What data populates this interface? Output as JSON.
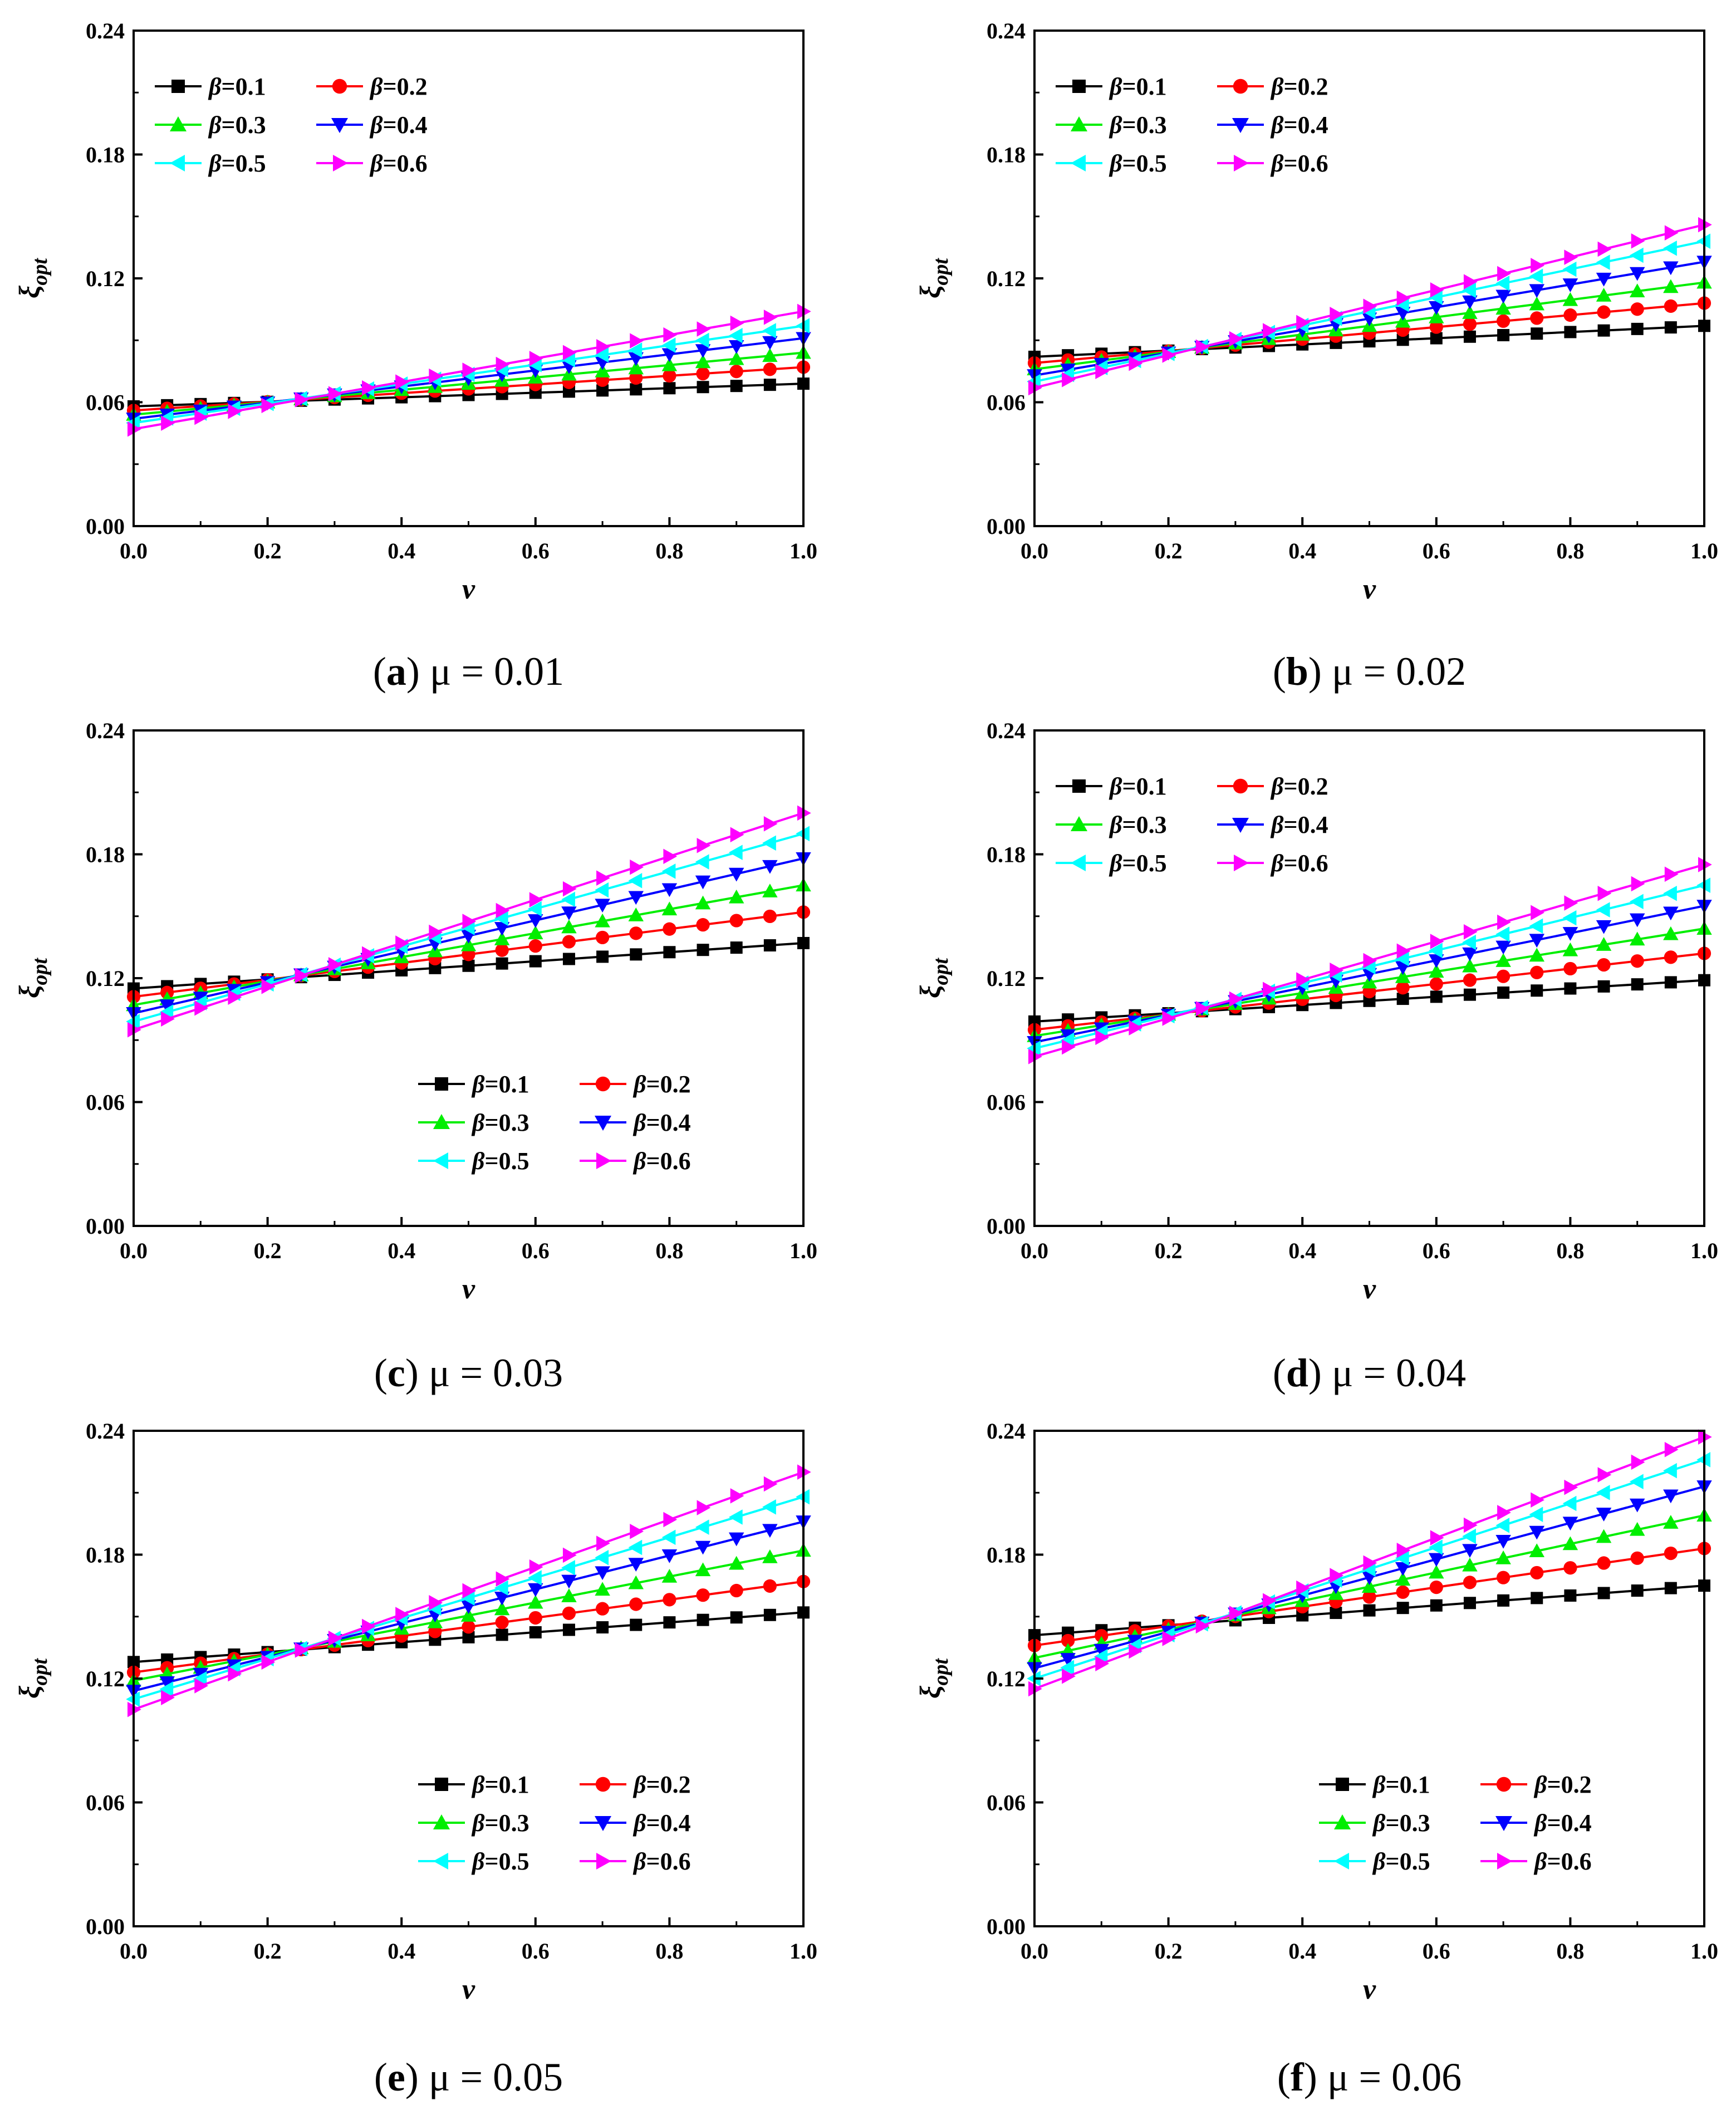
{
  "figure": {
    "panels": [
      {
        "caption_letter": "a",
        "caption_expr": "μ = 0.01",
        "ylabel": "ξ",
        "ylabel_sub": "opt",
        "xlabel": "v",
        "legend_position": "top-left",
        "chart_data": {
          "type": "line",
          "x": [
            0.0,
            0.05,
            0.1,
            0.15,
            0.2,
            0.25,
            0.3,
            0.35,
            0.4,
            0.45,
            0.5,
            0.55,
            0.6,
            0.65,
            0.7,
            0.75,
            0.8,
            0.85,
            0.9,
            0.95,
            1.0
          ],
          "xlim": [
            0.0,
            1.0
          ],
          "ylim": [
            0.0,
            0.24
          ],
          "xticks": [
            "0.0",
            "0.2",
            "0.4",
            "0.6",
            "0.8",
            "1.0"
          ],
          "yticks": [
            "0.00",
            "0.06",
            "0.12",
            "0.18",
            "0.24"
          ],
          "series": [
            {
              "name": "β=0.1",
              "color": "#000000",
              "marker": "square",
              "start": 0.058,
              "end": 0.069
            },
            {
              "name": "β=0.2",
              "color": "#ff0000",
              "marker": "circle",
              "start": 0.056,
              "end": 0.077
            },
            {
              "name": "β=0.3",
              "color": "#00ee00",
              "marker": "triangle-up",
              "start": 0.054,
              "end": 0.084
            },
            {
              "name": "β=0.4",
              "color": "#0000ff",
              "marker": "triangle-down",
              "start": 0.052,
              "end": 0.091
            },
            {
              "name": "β=0.5",
              "color": "#00ffff",
              "marker": "triangle-left",
              "start": 0.05,
              "end": 0.097
            },
            {
              "name": "β=0.6",
              "color": "#ff00ff",
              "marker": "triangle-right",
              "start": 0.047,
              "end": 0.104
            }
          ]
        }
      },
      {
        "caption_letter": "b",
        "caption_expr": "μ = 0.02",
        "ylabel": "ξ",
        "ylabel_sub": "opt",
        "xlabel": "v",
        "legend_position": "top-left",
        "chart_data": {
          "type": "line",
          "x": [
            0.0,
            0.05,
            0.1,
            0.15,
            0.2,
            0.25,
            0.3,
            0.35,
            0.4,
            0.45,
            0.5,
            0.55,
            0.6,
            0.65,
            0.7,
            0.75,
            0.8,
            0.85,
            0.9,
            0.95,
            1.0
          ],
          "xlim": [
            0.0,
            1.0
          ],
          "ylim": [
            0.0,
            0.24
          ],
          "xticks": [
            "0.0",
            "0.2",
            "0.4",
            "0.6",
            "0.8",
            "1.0"
          ],
          "yticks": [
            "0.00",
            "0.06",
            "0.12",
            "0.18",
            "0.24"
          ],
          "series": [
            {
              "name": "β=0.1",
              "color": "#000000",
              "marker": "square",
              "start": 0.082,
              "end": 0.097
            },
            {
              "name": "β=0.2",
              "color": "#ff0000",
              "marker": "circle",
              "start": 0.079,
              "end": 0.108
            },
            {
              "name": "β=0.3",
              "color": "#00ee00",
              "marker": "triangle-up",
              "start": 0.076,
              "end": 0.118
            },
            {
              "name": "β=0.4",
              "color": "#0000ff",
              "marker": "triangle-down",
              "start": 0.073,
              "end": 0.128
            },
            {
              "name": "β=0.5",
              "color": "#00ffff",
              "marker": "triangle-left",
              "start": 0.07,
              "end": 0.138
            },
            {
              "name": "β=0.6",
              "color": "#ff00ff",
              "marker": "triangle-right",
              "start": 0.067,
              "end": 0.146
            }
          ]
        }
      },
      {
        "caption_letter": "c",
        "caption_expr": "μ = 0.03",
        "ylabel": "ξ",
        "ylabel_sub": "opt",
        "xlabel": "v",
        "legend_position": "bottom-right",
        "chart_data": {
          "type": "line",
          "x": [
            0.0,
            0.05,
            0.1,
            0.15,
            0.2,
            0.25,
            0.3,
            0.35,
            0.4,
            0.45,
            0.5,
            0.55,
            0.6,
            0.65,
            0.7,
            0.75,
            0.8,
            0.85,
            0.9,
            0.95,
            1.0
          ],
          "xlim": [
            0.0,
            1.0
          ],
          "ylim": [
            0.0,
            0.24
          ],
          "xticks": [
            "0.0",
            "0.2",
            "0.4",
            "0.6",
            "0.8",
            "1.0"
          ],
          "yticks": [
            "0.00",
            "0.06",
            "0.12",
            "0.18",
            "0.24"
          ],
          "series": [
            {
              "name": "β=0.1",
              "color": "#000000",
              "marker": "square",
              "start": 0.115,
              "end": 0.137
            },
            {
              "name": "β=0.2",
              "color": "#ff0000",
              "marker": "circle",
              "start": 0.111,
              "end": 0.152
            },
            {
              "name": "β=0.3",
              "color": "#00ee00",
              "marker": "triangle-up",
              "start": 0.107,
              "end": 0.165
            },
            {
              "name": "β=0.4",
              "color": "#0000ff",
              "marker": "triangle-down",
              "start": 0.103,
              "end": 0.178
            },
            {
              "name": "β=0.5",
              "color": "#00ffff",
              "marker": "triangle-left",
              "start": 0.099,
              "end": 0.19
            },
            {
              "name": "β=0.6",
              "color": "#ff00ff",
              "marker": "triangle-right",
              "start": 0.095,
              "end": 0.2
            }
          ]
        }
      },
      {
        "caption_letter": "d",
        "caption_expr": "μ = 0.04",
        "ylabel": "ξ",
        "ylabel_sub": "opt",
        "xlabel": "v",
        "legend_position": "top-left",
        "chart_data": {
          "type": "line",
          "x": [
            0.0,
            0.05,
            0.1,
            0.15,
            0.2,
            0.25,
            0.3,
            0.35,
            0.4,
            0.45,
            0.5,
            0.55,
            0.6,
            0.65,
            0.7,
            0.75,
            0.8,
            0.85,
            0.9,
            0.95,
            1.0
          ],
          "xlim": [
            0.0,
            1.0
          ],
          "ylim": [
            0.0,
            0.24
          ],
          "xticks": [
            "0.0",
            "0.2",
            "0.4",
            "0.6",
            "0.8",
            "1.0"
          ],
          "yticks": [
            "0.00",
            "0.06",
            "0.12",
            "0.18",
            "0.24"
          ],
          "series": [
            {
              "name": "β=0.1",
              "color": "#000000",
              "marker": "square",
              "start": 0.099,
              "end": 0.119
            },
            {
              "name": "β=0.2",
              "color": "#ff0000",
              "marker": "circle",
              "start": 0.095,
              "end": 0.132
            },
            {
              "name": "β=0.3",
              "color": "#00ee00",
              "marker": "triangle-up",
              "start": 0.092,
              "end": 0.144
            },
            {
              "name": "β=0.4",
              "color": "#0000ff",
              "marker": "triangle-down",
              "start": 0.089,
              "end": 0.155
            },
            {
              "name": "β=0.5",
              "color": "#00ffff",
              "marker": "triangle-left",
              "start": 0.086,
              "end": 0.165
            },
            {
              "name": "β=0.6",
              "color": "#ff00ff",
              "marker": "triangle-right",
              "start": 0.082,
              "end": 0.175
            }
          ]
        }
      },
      {
        "caption_letter": "e",
        "caption_expr": "μ = 0.05",
        "ylabel": "ξ",
        "ylabel_sub": "opt",
        "xlabel": "v",
        "legend_position": "bottom-right",
        "chart_data": {
          "type": "line",
          "x": [
            0.0,
            0.05,
            0.1,
            0.15,
            0.2,
            0.25,
            0.3,
            0.35,
            0.4,
            0.45,
            0.5,
            0.55,
            0.6,
            0.65,
            0.7,
            0.75,
            0.8,
            0.85,
            0.9,
            0.95,
            1.0
          ],
          "xlim": [
            0.0,
            1.0
          ],
          "ylim": [
            0.0,
            0.24
          ],
          "xticks": [
            "0.0",
            "0.2",
            "0.4",
            "0.6",
            "0.8",
            "1.0"
          ],
          "yticks": [
            "0.00",
            "0.06",
            "0.12",
            "0.18",
            "0.24"
          ],
          "series": [
            {
              "name": "β=0.1",
              "color": "#000000",
              "marker": "square",
              "start": 0.128,
              "end": 0.152
            },
            {
              "name": "β=0.2",
              "color": "#ff0000",
              "marker": "circle",
              "start": 0.123,
              "end": 0.167
            },
            {
              "name": "β=0.3",
              "color": "#00ee00",
              "marker": "triangle-up",
              "start": 0.119,
              "end": 0.182
            },
            {
              "name": "β=0.4",
              "color": "#0000ff",
              "marker": "triangle-down",
              "start": 0.114,
              "end": 0.196
            },
            {
              "name": "β=0.5",
              "color": "#00ffff",
              "marker": "triangle-left",
              "start": 0.11,
              "end": 0.208
            },
            {
              "name": "β=0.6",
              "color": "#ff00ff",
              "marker": "triangle-right",
              "start": 0.105,
              "end": 0.22
            }
          ]
        }
      },
      {
        "caption_letter": "f",
        "caption_expr": "μ = 0.06",
        "ylabel": "ξ",
        "ylabel_sub": "opt",
        "xlabel": "v",
        "legend_position": "bottom-right",
        "chart_data": {
          "type": "line",
          "x": [
            0.0,
            0.05,
            0.1,
            0.15,
            0.2,
            0.25,
            0.3,
            0.35,
            0.4,
            0.45,
            0.5,
            0.55,
            0.6,
            0.65,
            0.7,
            0.75,
            0.8,
            0.85,
            0.9,
            0.95,
            1.0
          ],
          "xlim": [
            0.0,
            1.0
          ],
          "ylim": [
            0.0,
            0.24
          ],
          "xticks": [
            "0.0",
            "0.2",
            "0.4",
            "0.6",
            "0.8",
            "1.0"
          ],
          "yticks": [
            "0.00",
            "0.06",
            "0.12",
            "0.18",
            "0.24"
          ],
          "series": [
            {
              "name": "β=0.1",
              "color": "#000000",
              "marker": "square",
              "start": 0.141,
              "end": 0.165
            },
            {
              "name": "β=0.2",
              "color": "#ff0000",
              "marker": "circle",
              "start": 0.136,
              "end": 0.183
            },
            {
              "name": "β=0.3",
              "color": "#00ee00",
              "marker": "triangle-up",
              "start": 0.13,
              "end": 0.199
            },
            {
              "name": "β=0.4",
              "color": "#0000ff",
              "marker": "triangle-down",
              "start": 0.125,
              "end": 0.213
            },
            {
              "name": "β=0.5",
              "color": "#00ffff",
              "marker": "triangle-left",
              "start": 0.12,
              "end": 0.226
            },
            {
              "name": "β=0.6",
              "color": "#ff00ff",
              "marker": "triangle-right",
              "start": 0.115,
              "end": 0.237
            }
          ]
        }
      }
    ]
  }
}
